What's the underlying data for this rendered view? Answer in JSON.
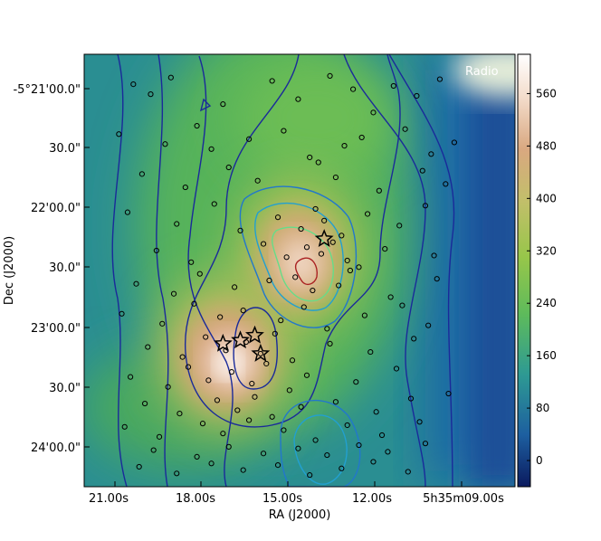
{
  "chart_data": {
    "type": "heatmap",
    "panel_label": "Radio",
    "xlabel": "RA (J2000)",
    "ylabel": "Dec (J2000)",
    "x_ticks": [
      "21.00s",
      "18.00s",
      "15.00s",
      "12.00s",
      "5h35m09.00s"
    ],
    "y_ticks": [
      "-5°21'00.0\"",
      "30.0\"",
      "22'00.0\"",
      "30.0\"",
      "23'00.0\"",
      "30.0\"",
      "24'00.0\""
    ],
    "colorbar_ticks": [
      0,
      80,
      160,
      240,
      320,
      400,
      480,
      560
    ],
    "colorbar_range": [
      -40,
      620
    ],
    "colormap": [
      "#0b1a5e",
      "#1d5fa0",
      "#2e9a93",
      "#5ebb5b",
      "#97c64a",
      "#c2bf6a",
      "#d9a880",
      "#f3dccb",
      "#ffffff"
    ],
    "contour_colors": [
      "#1a2a9a",
      "#2277cc",
      "#22a0d0",
      "#66dd88",
      "#aa2222"
    ],
    "sources": {
      "ra_s": [
        20.4,
        19.8,
        19.1,
        17.3,
        15.6,
        14.7,
        13.6,
        12.8,
        12.1,
        11.4,
        10.6,
        9.8,
        20.9,
        19.3,
        18.2,
        17.7,
        16.4,
        15.2,
        14.3,
        13.1,
        12.5,
        11.0,
        10.1,
        9.3,
        20.1,
        18.6,
        17.1,
        16.1,
        14.0,
        13.4,
        11.9,
        10.4,
        9.6,
        20.6,
        18.9,
        17.6,
        16.7,
        15.4,
        14.6,
        14.1,
        13.8,
        13.2,
        12.3,
        11.2,
        10.3,
        19.6,
        18.4,
        15.9,
        15.1,
        14.4,
        13.9,
        13.5,
        13.0,
        12.6,
        11.7,
        10.0,
        20.3,
        19.0,
        18.1,
        16.9,
        15.7,
        14.8,
        14.2,
        13.3,
        12.9,
        11.5,
        9.9,
        20.8,
        19.4,
        18.3,
        17.4,
        16.6,
        15.3,
        14.5,
        13.7,
        12.4,
        11.1,
        10.2,
        19.9,
        18.7,
        17.9,
        17.2,
        16.5,
        16.0,
        15.5,
        14.9,
        13.6,
        12.2,
        10.7,
        20.5,
        19.2,
        18.5,
        17.8,
        17.0,
        16.3,
        15.8,
        15.0,
        14.4,
        12.7,
        11.3,
        9.5,
        20.0,
        18.8,
        17.5,
        16.8,
        16.2,
        15.6,
        14.6,
        13.4,
        12.0,
        10.8,
        20.7,
        19.5,
        18.0,
        17.3,
        16.4,
        15.2,
        14.1,
        13.0,
        11.8,
        10.5,
        19.7,
        18.2,
        17.1,
        15.9,
        14.7,
        13.7,
        12.6,
        11.6,
        10.3,
        20.2,
        18.9,
        17.7,
        16.6,
        15.4,
        14.3,
        13.2,
        12.1,
        10.9
      ],
      "dec_arcsec": [
        8,
        14,
        4,
        20,
        6,
        17,
        3,
        11,
        25,
        9,
        15,
        5,
        38,
        44,
        33,
        47,
        41,
        36,
        52,
        45,
        40,
        35,
        50,
        43,
        62,
        70,
        58,
        66,
        55,
        64,
        72,
        60,
        68,
        85,
        92,
        80,
        96,
        88,
        95,
        83,
        90,
        99,
        86,
        93,
        81,
        108,
        115,
        104,
        112,
        106,
        110,
        103,
        114,
        118,
        107,
        111,
        128,
        134,
        122,
        130,
        126,
        124,
        132,
        129,
        120,
        136,
        125,
        146,
        152,
        140,
        148,
        144,
        150,
        142,
        155,
        147,
        141,
        153,
        166,
        172,
        160,
        168,
        163,
        170,
        158,
        174,
        164,
        169,
        161,
        184,
        190,
        178,
        186,
        181,
        188,
        176,
        192,
        183,
        187,
        179,
        194,
        200,
        206,
        198,
        204,
        196,
        208,
        202,
        199,
        205,
        197,
        214,
        220,
        212,
        218,
        210,
        216,
        222,
        213,
        219,
        211,
        228,
        232,
        226,
        230,
        227,
        231,
        225,
        229,
        224,
        238,
        242,
        236,
        240,
        237,
        243,
        239,
        235,
        241
      ]
    },
    "stars": {
      "ra_s": [
        13.8,
        16.2,
        16.7,
        16.0,
        17.3
      ],
      "dec_arcsec": [
        101,
        159,
        162,
        170,
        164
      ]
    }
  }
}
